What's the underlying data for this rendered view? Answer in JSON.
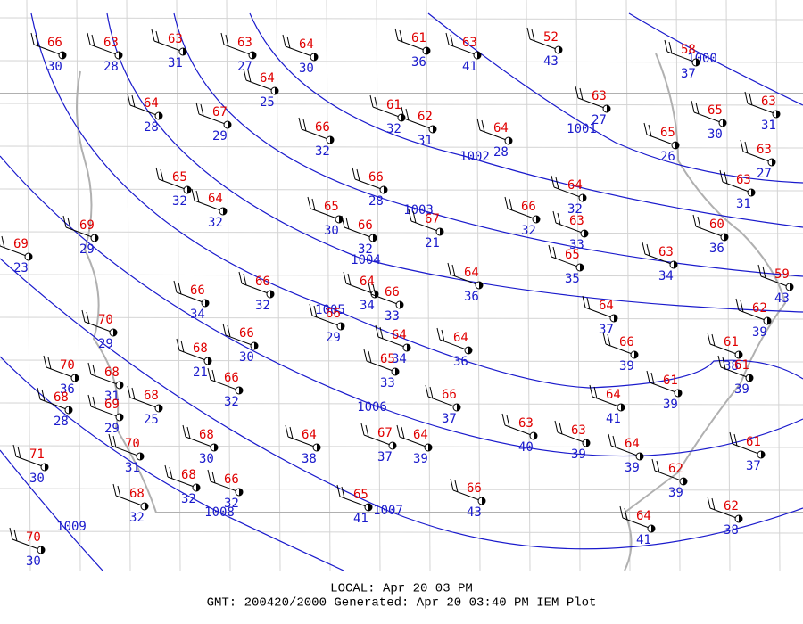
{
  "stations": [
    {
      "temperature": 66,
      "dewpoint": 30
    },
    {
      "temperature": 63,
      "dewpoint": 28
    },
    {
      "temperature": 63,
      "dewpoint": 31
    },
    {
      "temperature": 63,
      "dewpoint": 27
    },
    {
      "temperature": 64,
      "dewpoint": 30
    },
    {
      "temperature": 61,
      "dewpoint": 36
    },
    {
      "temperature": 63,
      "dewpoint": 41
    },
    {
      "temperature": 52,
      "dewpoint": 43
    },
    {
      "temperature": 58,
      "dewpoint": 37
    },
    {
      "temperature": 64,
      "dewpoint": 25
    },
    {
      "temperature": 64,
      "dewpoint": 28
    },
    {
      "temperature": 67,
      "dewpoint": 29
    },
    {
      "temperature": 61,
      "dewpoint": 32
    },
    {
      "temperature": 62,
      "dewpoint": 31
    },
    {
      "temperature": 63,
      "dewpoint": 27
    },
    {
      "temperature": 65,
      "dewpoint": 26
    },
    {
      "temperature": 65,
      "dewpoint": 30
    },
    {
      "temperature": 63,
      "dewpoint": 31
    },
    {
      "temperature": 66,
      "dewpoint": 32
    },
    {
      "temperature": 64,
      "dewpoint": 28
    },
    {
      "temperature": 63,
      "dewpoint": 27
    },
    {
      "temperature": 63,
      "dewpoint": 31
    },
    {
      "temperature": 65,
      "dewpoint": 32
    },
    {
      "temperature": 64,
      "dewpoint": 32
    },
    {
      "temperature": 66,
      "dewpoint": 28
    },
    {
      "temperature": 64,
      "dewpoint": 32
    },
    {
      "temperature": 65,
      "dewpoint": 30
    },
    {
      "temperature": 66,
      "dewpoint": 32
    },
    {
      "temperature": 67,
      "dewpoint": 21
    },
    {
      "temperature": 66,
      "dewpoint": 32
    },
    {
      "temperature": 63,
      "dewpoint": 33
    },
    {
      "temperature": 60,
      "dewpoint": 36
    },
    {
      "temperature": 69,
      "dewpoint": 29
    },
    {
      "temperature": 69,
      "dewpoint": 23
    },
    {
      "temperature": 65,
      "dewpoint": 35
    },
    {
      "temperature": 63,
      "dewpoint": 34
    },
    {
      "temperature": 59,
      "dewpoint": 43
    },
    {
      "temperature": 64,
      "dewpoint": 36
    },
    {
      "temperature": 66,
      "dewpoint": 34
    },
    {
      "temperature": 66,
      "dewpoint": 32
    },
    {
      "temperature": 64,
      "dewpoint": 34
    },
    {
      "temperature": 66,
      "dewpoint": 33
    },
    {
      "temperature": 66,
      "dewpoint": 29
    },
    {
      "temperature": 64,
      "dewpoint": 37
    },
    {
      "temperature": 62,
      "dewpoint": 39
    },
    {
      "temperature": 70,
      "dewpoint": 29
    },
    {
      "temperature": 66,
      "dewpoint": 30
    },
    {
      "temperature": 64,
      "dewpoint": 34
    },
    {
      "temperature": 64,
      "dewpoint": 36
    },
    {
      "temperature": 66,
      "dewpoint": 39
    },
    {
      "temperature": 61,
      "dewpoint": 38
    },
    {
      "temperature": 68,
      "dewpoint": 21
    },
    {
      "temperature": 65,
      "dewpoint": 33
    },
    {
      "temperature": 66,
      "dewpoint": 32
    },
    {
      "temperature": 70,
      "dewpoint": 36
    },
    {
      "temperature": 68,
      "dewpoint": 31
    },
    {
      "temperature": 68,
      "dewpoint": 28
    },
    {
      "temperature": 69,
      "dewpoint": 29
    },
    {
      "temperature": 68,
      "dewpoint": 25
    },
    {
      "temperature": 66,
      "dewpoint": 37
    },
    {
      "temperature": 64,
      "dewpoint": 41
    },
    {
      "temperature": 61,
      "dewpoint": 39
    },
    {
      "temperature": 61,
      "dewpoint": 39
    },
    {
      "temperature": 63,
      "dewpoint": 40
    },
    {
      "temperature": 68,
      "dewpoint": 30
    },
    {
      "temperature": 64,
      "dewpoint": 38
    },
    {
      "temperature": 67,
      "dewpoint": 37
    },
    {
      "temperature": 64,
      "dewpoint": 39
    },
    {
      "temperature": 63,
      "dewpoint": 39
    },
    {
      "temperature": 70,
      "dewpoint": 31
    },
    {
      "temperature": 71,
      "dewpoint": 30
    },
    {
      "temperature": 64,
      "dewpoint": 39
    },
    {
      "temperature": 61,
      "dewpoint": 37
    },
    {
      "temperature": 68,
      "dewpoint": 32
    },
    {
      "temperature": 66,
      "dewpoint": 32
    },
    {
      "temperature": 62,
      "dewpoint": 39
    },
    {
      "temperature": 68,
      "dewpoint": 32
    },
    {
      "temperature": 66,
      "dewpoint": 43
    },
    {
      "temperature": 65,
      "dewpoint": 41
    },
    {
      "temperature": 62,
      "dewpoint": 38
    },
    {
      "temperature": 64,
      "dewpoint": 41
    },
    {
      "temperature": 70,
      "dewpoint": 30
    }
  ],
  "isobars": [
    1000,
    1001,
    1002,
    1003,
    1004,
    1005,
    1006,
    1007,
    1008,
    1009
  ],
  "footer": {
    "local": "LOCAL: Apr 20 03 PM",
    "generated": "GMT: 200420/2000 Generated: Apr 20 03:40 PM IEM Plot"
  }
}
